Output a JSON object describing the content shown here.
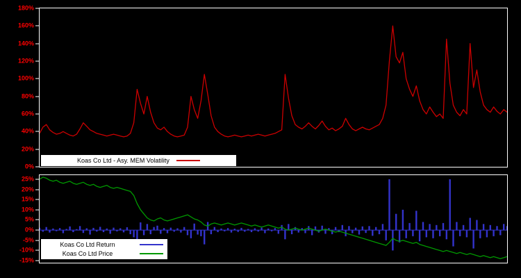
{
  "window": {
    "description": "dual-panel financial chart on black background"
  },
  "colors": {
    "background": "#000000",
    "frame": "#ffffff",
    "axis_labels": "#ff0000",
    "volatility_line": "#cc0000",
    "return_bars": "#3333cc",
    "price_line": "#009900",
    "legend_background": "#ffffff",
    "legend_text": "#000000"
  },
  "chart_data": [
    {
      "type": "line",
      "panel": "top",
      "title": "",
      "xlabel": "",
      "ylabel": "",
      "legend_position": "bottom-left inside plot",
      "grid": false,
      "ylim": [
        0,
        180
      ],
      "ytick_values": [
        0,
        20,
        40,
        60,
        80,
        100,
        120,
        140,
        160,
        180
      ],
      "ytick_labels": [
        "0%",
        "20%",
        "40%",
        "60%",
        "80%",
        "100%",
        "120%",
        "140%",
        "160%",
        "180%"
      ],
      "series": [
        {
          "name": "Koas Co Ltd - Asy. MEM Volatility",
          "type": "line",
          "color": "#cc0000",
          "unit": "%",
          "values": [
            38,
            45,
            48,
            42,
            39,
            37,
            38,
            40,
            38,
            36,
            35,
            37,
            43,
            50,
            46,
            42,
            40,
            38,
            37,
            36,
            35,
            36,
            37,
            36,
            35,
            34,
            35,
            38,
            50,
            88,
            72,
            60,
            80,
            62,
            50,
            44,
            42,
            45,
            40,
            37,
            35,
            34,
            35,
            36,
            45,
            80,
            65,
            55,
            75,
            105,
            82,
            58,
            45,
            40,
            37,
            35,
            34,
            35,
            36,
            35,
            34,
            35,
            36,
            35,
            36,
            37,
            36,
            35,
            36,
            37,
            38,
            40,
            42,
            105,
            78,
            58,
            48,
            45,
            43,
            46,
            50,
            46,
            43,
            47,
            52,
            46,
            42,
            44,
            41,
            43,
            46,
            55,
            48,
            43,
            41,
            43,
            45,
            43,
            42,
            44,
            46,
            48,
            55,
            70,
            120,
            160,
            125,
            118,
            130,
            100,
            88,
            80,
            92,
            75,
            65,
            60,
            68,
            62,
            57,
            60,
            55,
            145,
            95,
            70,
            62,
            58,
            65,
            60,
            140,
            90,
            110,
            85,
            70,
            65,
            62,
            68,
            63,
            60,
            65,
            62
          ]
        }
      ]
    },
    {
      "type": "mixed",
      "panel": "bottom",
      "title": "",
      "xlabel": "",
      "ylabel": "",
      "legend_position": "bottom-left inside plot",
      "grid": false,
      "ylim": [
        -16,
        27
      ],
      "ytick_values": [
        -15,
        -10,
        -5,
        0,
        5,
        10,
        15,
        20,
        25
      ],
      "ytick_labels": [
        "-15%",
        "-10%",
        "-5%",
        "0%",
        "5%",
        "10%",
        "15%",
        "20%",
        "25%"
      ],
      "series": [
        {
          "name": "Koas Co Ltd Return",
          "type": "bar",
          "color": "#3333cc",
          "unit": "%",
          "values": [
            1.2,
            -0.8,
            1.5,
            -1.2,
            0.8,
            -0.5,
            1.0,
            -1.5,
            0.6,
            1.8,
            -1.0,
            0.5,
            2.0,
            -1.4,
            0.9,
            -2.2,
            1.1,
            -0.7,
            1.6,
            -1.0,
            0.8,
            -1.8,
            1.2,
            -0.6,
            0.9,
            -1.1,
            1.4,
            -2.0,
            -3.5,
            -4.5,
            3.8,
            -2.5,
            3.0,
            -2.0,
            1.5,
            2.2,
            -1.8,
            1.0,
            -1.5,
            1.2,
            -0.8,
            0.9,
            -1.2,
            1.5,
            -2.5,
            -4.0,
            3.2,
            -2.2,
            -3.0,
            -7.0,
            4.0,
            -2.0,
            1.5,
            -1.0,
            0.8,
            -0.6,
            1.0,
            -1.2,
            0.7,
            -0.9,
            1.1,
            -0.8,
            0.6,
            -1.0,
            0.9,
            -0.7,
            1.2,
            -1.5,
            0.8,
            -0.6,
            1.0,
            -1.8,
            2.5,
            -4.5,
            3.0,
            -2.0,
            1.5,
            -1.2,
            1.0,
            -1.5,
            2.0,
            -2.5,
            1.8,
            -1.2,
            2.2,
            -1.8,
            1.0,
            -2.0,
            1.5,
            -1.0,
            2.5,
            -3.0,
            2.0,
            -1.5,
            1.2,
            -2.2,
            1.8,
            -1.4,
            2.0,
            -2.8,
            1.5,
            -2.0,
            3.0,
            -5.0,
            25.0,
            -10.0,
            8.0,
            -6.0,
            10.0,
            -4.0,
            3.5,
            -3.0,
            9.5,
            -5.5,
            4.0,
            -3.5,
            3.0,
            -4.0,
            2.5,
            -3.0,
            3.5,
            -4.5,
            25.0,
            -8.0,
            4.0,
            -3.0,
            2.5,
            -3.5,
            6.0,
            -9.0,
            5.0,
            -4.0,
            3.0,
            -3.5,
            2.5,
            -3.0,
            2.0,
            -2.5,
            3.0,
            2.0
          ]
        },
        {
          "name": "Koas Co Ltd Price",
          "type": "line",
          "color": "#009900",
          "unit": "%",
          "values": [
            25,
            26,
            25.5,
            24.5,
            24,
            24.5,
            23.5,
            23,
            23.5,
            24,
            23,
            22.5,
            23,
            23.5,
            22.5,
            22,
            22.5,
            21.5,
            21,
            21.5,
            22,
            21,
            20.5,
            21,
            20.5,
            20,
            19.5,
            19,
            17,
            13,
            10,
            8,
            6,
            5,
            4.5,
            5.5,
            6,
            5,
            4.5,
            5,
            5.5,
            6,
            6.5,
            7,
            7.5,
            6.5,
            5.5,
            5,
            4,
            2.5,
            2,
            3,
            3.5,
            3,
            2.5,
            3,
            3.5,
            3,
            2.5,
            3,
            3.5,
            3,
            2.5,
            2,
            2.5,
            2,
            1.5,
            2,
            2.5,
            2,
            1.5,
            1,
            1.5,
            0.5,
            0,
            0.5,
            1,
            0.5,
            0,
            0.5,
            1,
            0.5,
            0,
            -0.5,
            0,
            0.5,
            0,
            -0.5,
            -1,
            -0.5,
            -1,
            -1.5,
            -2,
            -2.5,
            -3,
            -3.5,
            -4,
            -4.5,
            -5,
            -5.5,
            -6,
            -6.5,
            -7,
            -7.5,
            -6,
            -4,
            -5,
            -5.5,
            -5,
            -5.5,
            -6,
            -6.5,
            -6,
            -7,
            -7.5,
            -8,
            -8.5,
            -9,
            -9.5,
            -10,
            -10.5,
            -10,
            -10.5,
            -11,
            -11.5,
            -11,
            -11.5,
            -12,
            -11.5,
            -12,
            -12.5,
            -13,
            -12.5,
            -13,
            -13.5,
            -13,
            -13.5,
            -14,
            -13.5,
            -13
          ]
        }
      ]
    }
  ]
}
